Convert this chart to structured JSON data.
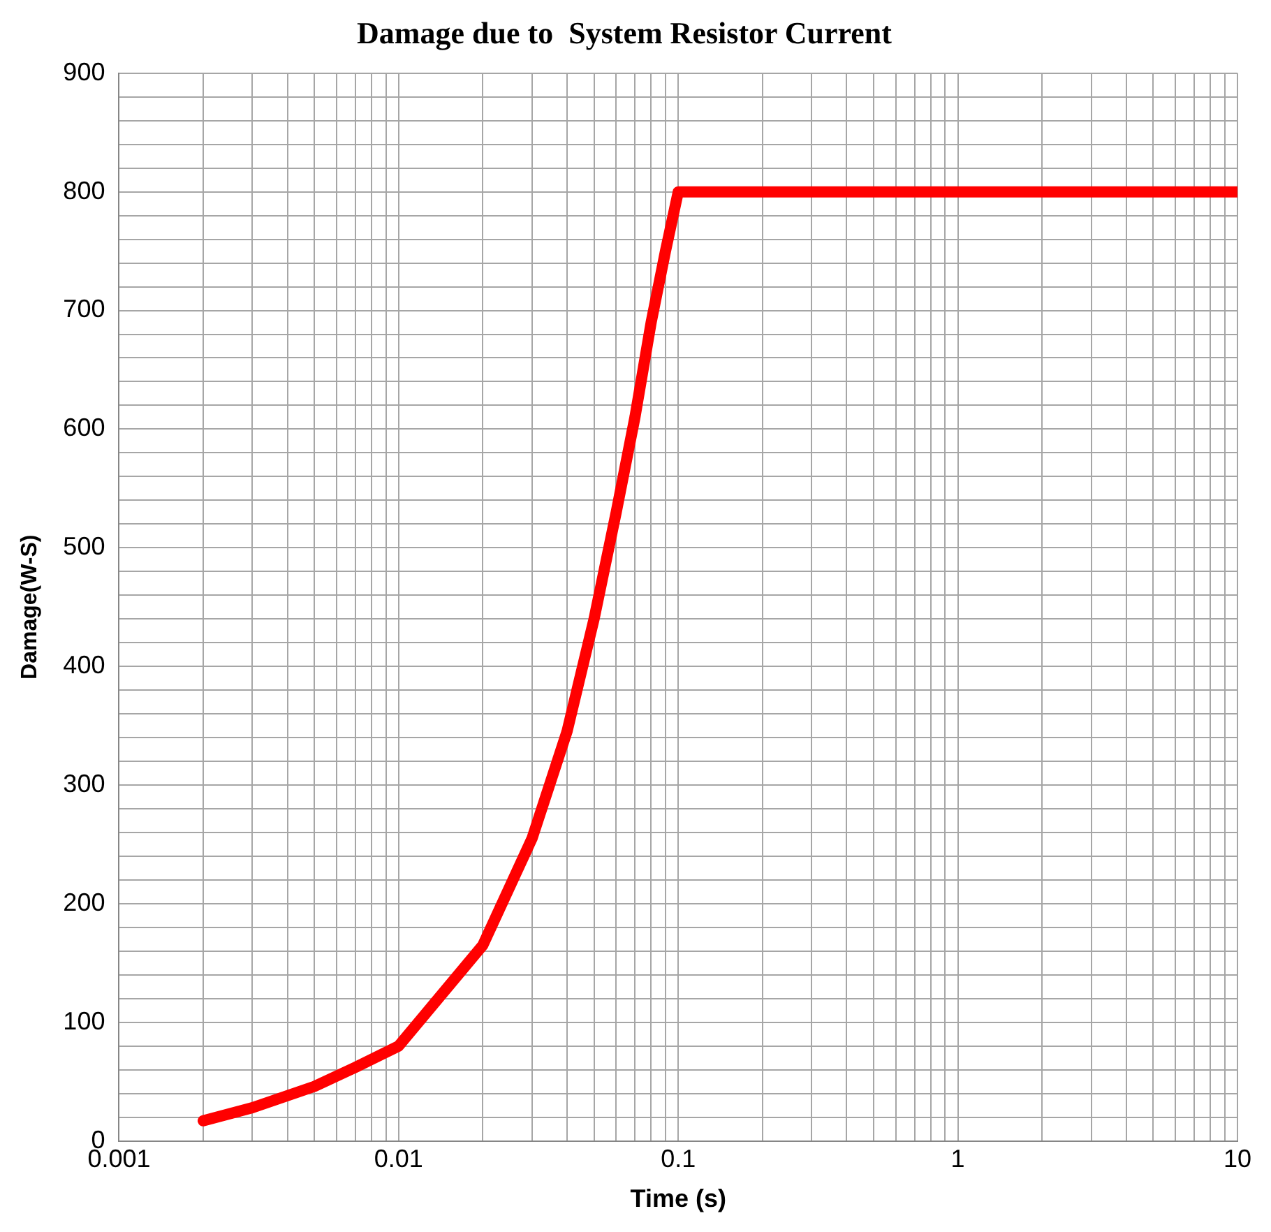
{
  "chart_data": {
    "type": "line",
    "title": "Damage due to  System Resistor Current",
    "xlabel": "Time (s)",
    "ylabel": "Damage(W-S)",
    "log": "x",
    "grid": true,
    "legend": false,
    "marker": "none",
    "line_style": "solid",
    "xlim": [
      0.001,
      10
    ],
    "xticks": [
      0.001,
      {
        "value": 0.002,
        "label": null
      },
      {
        "value": 0.003,
        "label": null
      },
      {
        "value": 0.004,
        "label": null
      },
      {
        "value": 0.005,
        "label": null
      },
      {
        "value": 0.006,
        "label": null
      },
      {
        "value": 0.007,
        "label": null
      },
      {
        "value": 0.008,
        "label": null
      },
      {
        "value": 0.009,
        "label": null
      },
      0.01,
      {
        "value": 0.02,
        "label": null
      },
      {
        "value": 0.03,
        "label": null
      },
      {
        "value": 0.04,
        "label": null
      },
      {
        "value": 0.05,
        "label": null
      },
      {
        "value": 0.06,
        "label": null
      },
      {
        "value": 0.07,
        "label": null
      },
      {
        "value": 0.08,
        "label": null
      },
      {
        "value": 0.09,
        "label": null
      },
      0.1,
      {
        "value": 0.2,
        "label": null
      },
      {
        "value": 0.3,
        "label": null
      },
      {
        "value": 0.4,
        "label": null
      },
      {
        "value": 0.5,
        "label": null
      },
      {
        "value": 0.6,
        "label": null
      },
      {
        "value": 0.7,
        "label": null
      },
      {
        "value": 0.8,
        "label": null
      },
      {
        "value": 0.9,
        "label": null
      },
      1,
      {
        "value": 2,
        "label": null
      },
      {
        "value": 3,
        "label": null
      },
      {
        "value": 4,
        "label": null
      },
      {
        "value": 5,
        "label": null
      },
      {
        "value": 6,
        "label": null
      },
      {
        "value": 7,
        "label": null
      },
      {
        "value": 8,
        "label": null
      },
      {
        "value": 9,
        "label": null
      },
      10
    ],
    "ylim": [
      0,
      900
    ],
    "yticks": [
      0,
      {
        "value": 20,
        "label": null
      },
      {
        "value": 40,
        "label": null
      },
      {
        "value": 60,
        "label": null
      },
      {
        "value": 80,
        "label": null
      },
      100,
      {
        "value": 120,
        "label": null
      },
      {
        "value": 140,
        "label": null
      },
      {
        "value": 160,
        "label": null
      },
      {
        "value": 180,
        "label": null
      },
      200,
      {
        "value": 220,
        "label": null
      },
      {
        "value": 240,
        "label": null
      },
      {
        "value": 260,
        "label": null
      },
      {
        "value": 280,
        "label": null
      },
      300,
      {
        "value": 320,
        "label": null
      },
      {
        "value": 340,
        "label": null
      },
      {
        "value": 360,
        "label": null
      },
      {
        "value": 380,
        "label": null
      },
      400,
      {
        "value": 420,
        "label": null
      },
      {
        "value": 440,
        "label": null
      },
      {
        "value": 460,
        "label": null
      },
      {
        "value": 480,
        "label": null
      },
      500,
      {
        "value": 520,
        "label": null
      },
      {
        "value": 540,
        "label": null
      },
      {
        "value": 560,
        "label": null
      },
      {
        "value": 580,
        "label": null
      },
      600,
      {
        "value": 620,
        "label": null
      },
      {
        "value": 640,
        "label": null
      },
      {
        "value": 660,
        "label": null
      },
      {
        "value": 680,
        "label": null
      },
      700,
      {
        "value": 720,
        "label": null
      },
      {
        "value": 740,
        "label": null
      },
      {
        "value": 760,
        "label": null
      },
      {
        "value": 780,
        "label": null
      },
      800,
      {
        "value": 820,
        "label": null
      },
      {
        "value": 840,
        "label": null
      },
      {
        "value": 860,
        "label": null
      },
      {
        "value": 880,
        "label": null
      },
      900
    ],
    "series": [
      {
        "color": "#ff0000",
        "x": [
          0.002,
          0.003,
          0.005,
          0.007,
          0.01,
          0.02,
          0.03,
          0.04,
          0.05,
          0.06,
          0.07,
          0.08,
          0.09,
          0.1,
          10
        ],
        "values": [
          17,
          28,
          46,
          62,
          80,
          165,
          255,
          345,
          440,
          530,
          610,
          690,
          750,
          800,
          800
        ]
      }
    ]
  }
}
